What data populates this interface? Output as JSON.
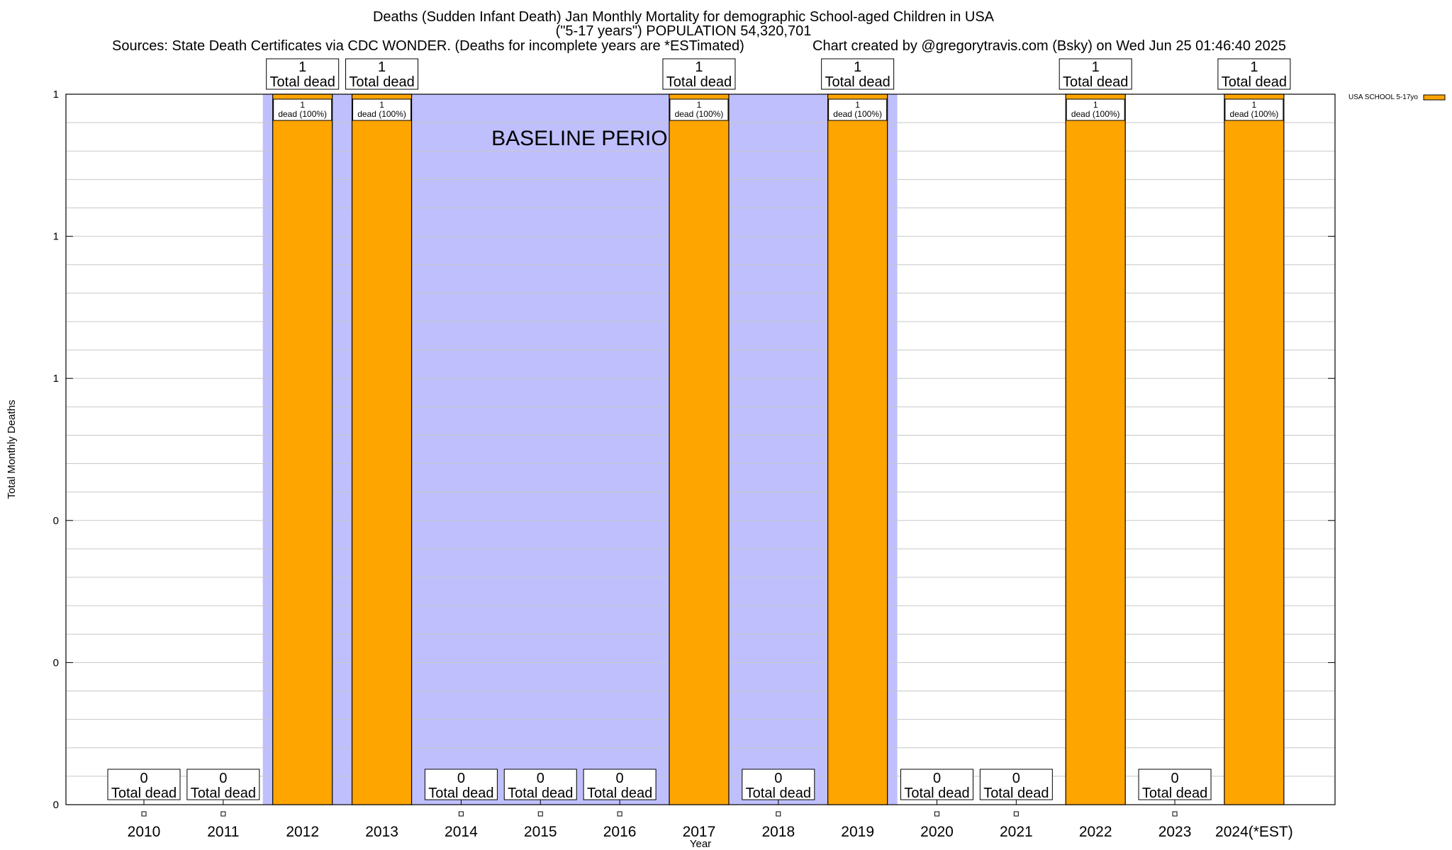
{
  "header": {
    "title_line1": "Deaths (Sudden Infant Death) Jan Monthly Mortality for demographic School-aged Children in USA",
    "title_line2": "(\"5-17 years\") POPULATION 54,320,701",
    "sources": "Sources: State Death Certificates via CDC WONDER. (Deaths for incomplete years are *ESTimated)",
    "credit": "Chart created by @gregorytravis.com (Bsky) on Wed Jun 25 01:46:40 2025"
  },
  "chart_data": {
    "type": "bar",
    "xlabel": "Year",
    "ylabel": "Total Monthly Deaths",
    "ylim": [
      0,
      1
    ],
    "ytick_labels": [
      "0",
      "0",
      "0",
      "1",
      "1",
      "1"
    ],
    "ytick_values": [
      0,
      0.2,
      0.4,
      0.6,
      0.8,
      1.0
    ],
    "grid": true,
    "legend_position": "top-right",
    "categories": [
      "2010",
      "2011",
      "2012",
      "2013",
      "2014",
      "2015",
      "2016",
      "2017",
      "2018",
      "2019",
      "2020",
      "2021",
      "2022",
      "2023",
      "2024(*EST)"
    ],
    "series": [
      {
        "name": "USA SCHOOL 5-17yo",
        "color": "#ffa500",
        "values": [
          0,
          0,
          1,
          1,
          0,
          0,
          0,
          1,
          0,
          1,
          0,
          0,
          1,
          0,
          1
        ]
      }
    ],
    "total_label_numbers": [
      "0",
      "0",
      "1",
      "1",
      "0",
      "0",
      "0",
      "1",
      "0",
      "1",
      "0",
      "0",
      "1",
      "0",
      "1"
    ],
    "total_label_text": "Total dead",
    "bar_inner_labels": [
      "",
      "",
      "1",
      "1",
      "",
      "",
      "",
      "1",
      "",
      "1",
      "",
      "",
      "1",
      "",
      "1"
    ],
    "bar_inner_sublabel": "dead (100%)",
    "baseline": {
      "label": "BASELINE PERIOD",
      "start_category": "2012",
      "end_category": "2019",
      "color": "#bfbffe"
    }
  }
}
